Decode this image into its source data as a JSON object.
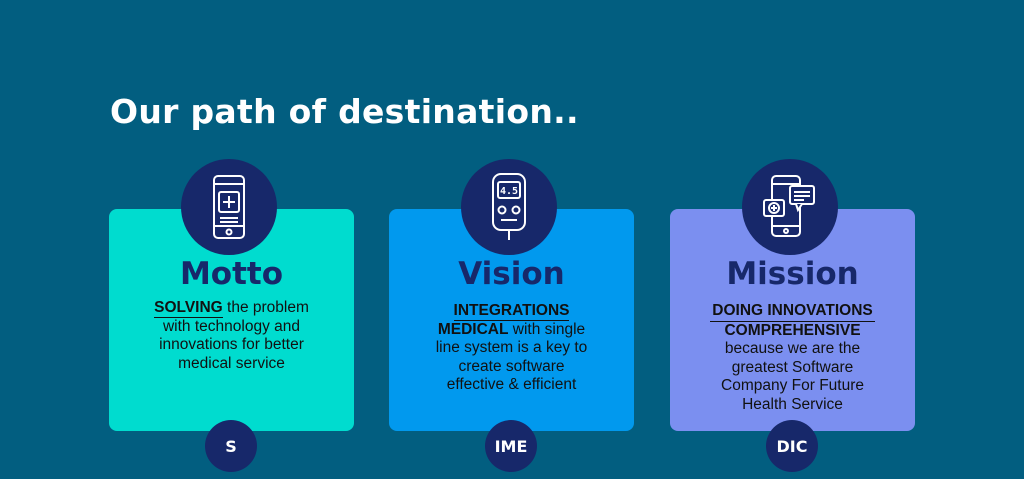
{
  "title": "Our path of destination..",
  "cards": [
    {
      "icon": "smartphone-medical-icon",
      "heading": "Motto",
      "keyword": "SOLVING",
      "text_after_keyword": " the problem",
      "lines": [
        "with technology and",
        "innovations for better",
        "medical service"
      ],
      "badge": "S"
    },
    {
      "icon": "glucometer-icon",
      "heading": "Vision",
      "keyword1": "INTEGRATIONS",
      "keyword2": "MEDICAL",
      "text_after_keyword2": " with single",
      "lines": [
        "line system is a key to",
        "create software",
        "effective & efficient"
      ],
      "badge": "IME"
    },
    {
      "icon": "telemedicine-chat-icon",
      "heading": "Mission",
      "keyword1": "DOING INNOVATIONS",
      "keyword2": "COMPREHENSIVE",
      "lines": [
        "because we are the",
        "greatest Software",
        "Company For Future",
        "Health Service"
      ],
      "badge": "DIC"
    }
  ],
  "colors": {
    "background": "#025e80",
    "card1": "#00dccf",
    "card2": "#0199ee",
    "card3": "#7b8ff0",
    "navy": "#17286a"
  }
}
